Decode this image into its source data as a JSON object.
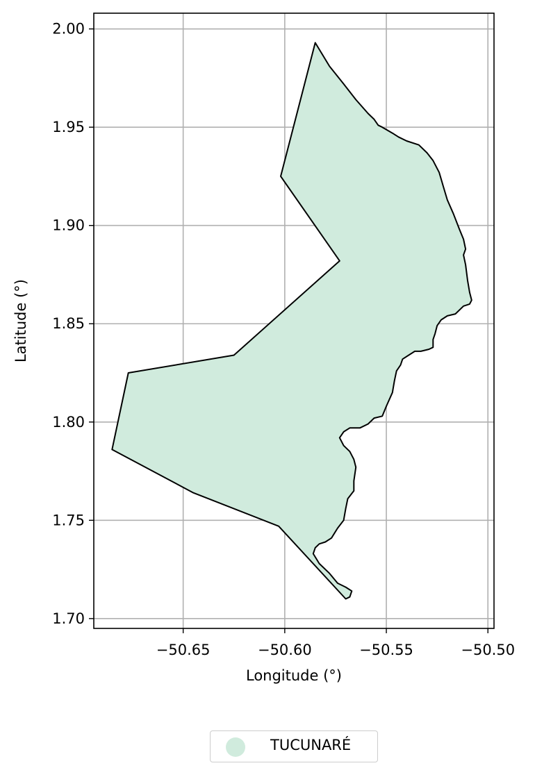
{
  "map": {
    "xlabel": "Longitude (°)",
    "ylabel": "Latitude (°)",
    "xlim": [
      -50.694,
      -50.497
    ],
    "ylim": [
      1.695,
      2.008
    ],
    "x_ticks": [
      -50.65,
      -50.6,
      -50.55,
      -50.5
    ],
    "x_tick_labels": [
      "−50.65",
      "−50.60",
      "−50.55",
      "−50.50"
    ],
    "y_ticks": [
      1.7,
      1.75,
      1.8,
      1.85,
      1.9,
      1.95,
      2.0
    ],
    "y_tick_labels": [
      "1.70",
      "1.75",
      "1.80",
      "1.85",
      "1.90",
      "1.95",
      "2.00"
    ],
    "grid": true,
    "fill_color": "#d0ebdd",
    "outline_color": "#000000",
    "region": {
      "name": "TUCUNARÉ",
      "boundary": [
        [
          -50.585,
          1.993
        ],
        [
          -50.578,
          1.981
        ],
        [
          -50.571,
          1.972
        ],
        [
          -50.565,
          1.964
        ],
        [
          -50.559,
          1.957
        ],
        [
          -50.556,
          1.954
        ],
        [
          -50.554,
          1.951
        ],
        [
          -50.552,
          1.95
        ],
        [
          -50.547,
          1.947
        ],
        [
          -50.544,
          1.945
        ],
        [
          -50.54,
          1.943
        ],
        [
          -50.534,
          1.941
        ],
        [
          -50.53,
          1.937
        ],
        [
          -50.527,
          1.933
        ],
        [
          -50.524,
          1.927
        ],
        [
          -50.522,
          1.92
        ],
        [
          -50.52,
          1.913
        ],
        [
          -50.517,
          1.906
        ],
        [
          -50.514,
          1.898
        ],
        [
          -50.512,
          1.893
        ],
        [
          -50.511,
          1.888
        ],
        [
          -50.512,
          1.885
        ],
        [
          -50.511,
          1.88
        ],
        [
          -50.51,
          1.872
        ],
        [
          -50.509,
          1.866
        ],
        [
          -50.508,
          1.862
        ],
        [
          -50.509,
          1.86
        ],
        [
          -50.512,
          1.859
        ],
        [
          -50.516,
          1.855
        ],
        [
          -50.52,
          1.854
        ],
        [
          -50.523,
          1.852
        ],
        [
          -50.525,
          1.849
        ],
        [
          -50.526,
          1.845
        ],
        [
          -50.527,
          1.842
        ],
        [
          -50.527,
          1.838
        ],
        [
          -50.529,
          1.837
        ],
        [
          -50.533,
          1.836
        ],
        [
          -50.536,
          1.836
        ],
        [
          -50.539,
          1.834
        ],
        [
          -50.542,
          1.832
        ],
        [
          -50.543,
          1.829
        ],
        [
          -50.545,
          1.826
        ],
        [
          -50.546,
          1.821
        ],
        [
          -50.547,
          1.815
        ],
        [
          -50.55,
          1.808
        ],
        [
          -50.552,
          1.803
        ],
        [
          -50.556,
          1.802
        ],
        [
          -50.559,
          1.799
        ],
        [
          -50.563,
          1.797
        ],
        [
          -50.568,
          1.797
        ],
        [
          -50.571,
          1.795
        ],
        [
          -50.573,
          1.792
        ],
        [
          -50.571,
          1.788
        ],
        [
          -50.568,
          1.785
        ],
        [
          -50.566,
          1.781
        ],
        [
          -50.565,
          1.777
        ],
        [
          -50.566,
          1.77
        ],
        [
          -50.566,
          1.765
        ],
        [
          -50.569,
          1.761
        ],
        [
          -50.57,
          1.756
        ],
        [
          -50.571,
          1.75
        ],
        [
          -50.574,
          1.746
        ],
        [
          -50.577,
          1.741
        ],
        [
          -50.58,
          1.739
        ],
        [
          -50.583,
          1.738
        ],
        [
          -50.585,
          1.736
        ],
        [
          -50.586,
          1.733
        ],
        [
          -50.583,
          1.728
        ],
        [
          -50.578,
          1.723
        ],
        [
          -50.574,
          1.718
        ],
        [
          -50.57,
          1.716
        ],
        [
          -50.567,
          1.714
        ],
        [
          -50.568,
          1.711
        ],
        [
          -50.57,
          1.71
        ],
        [
          -50.603,
          1.747
        ],
        [
          -50.645,
          1.764
        ],
        [
          -50.685,
          1.786
        ],
        [
          -50.677,
          1.825
        ],
        [
          -50.625,
          1.834
        ],
        [
          -50.573,
          1.882
        ],
        [
          -50.602,
          1.925
        ],
        [
          -50.585,
          1.993
        ]
      ]
    }
  },
  "legend": {
    "label": "TUCUNARÉ",
    "marker_color": "#d0ebdd"
  }
}
